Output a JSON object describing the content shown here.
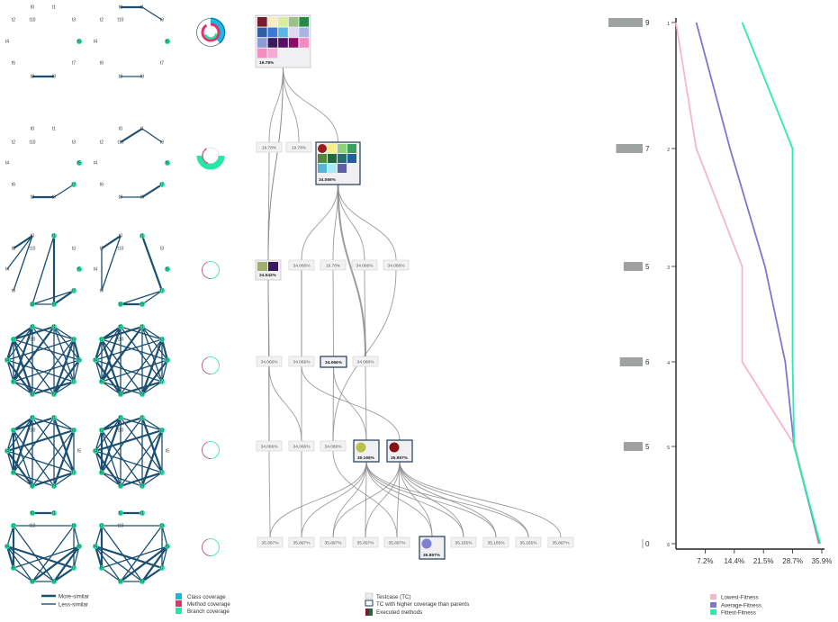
{
  "legend": {
    "graph": [
      "More-similar",
      "Less-similar"
    ],
    "coverage": [
      {
        "label": "Class coverage",
        "color": "#1ab7e5"
      },
      {
        "label": "Method coverage",
        "color": "#e0336b"
      },
      {
        "label": "Branch coverage",
        "color": "#22e8a8"
      }
    ],
    "testcase": [
      "Testcase (TC)",
      "TC with higher coverage than parents",
      "Executed methods"
    ],
    "fitness": [
      {
        "label": "Lowest-Fitness",
        "color": "#f7b6c8"
      },
      {
        "label": "Average-Fitness",
        "color": "#7b78cf"
      },
      {
        "label": "Fittest-Fitness",
        "color": "#26f0a6"
      }
    ]
  },
  "node_labels": [
    "t0",
    "t1",
    "t2",
    "t3",
    "t4",
    "t5",
    "t6",
    "t7",
    "t8",
    "t9",
    "t10"
  ],
  "tree": {
    "levels": [
      {
        "nodes": [
          "19.78%"
        ]
      },
      {
        "nodes": [
          "19.78%",
          "19.78%",
          "34.066%"
        ]
      },
      {
        "nodes": [
          "24.542%",
          "34.066%",
          "19.78%",
          "34.066%",
          "34.066%"
        ]
      },
      {
        "nodes": [
          "34.066%",
          "34.066%",
          "34.066%",
          "34.066%"
        ]
      },
      {
        "nodes": [
          "34.066%",
          "34.066%",
          "34.066%",
          "35.165%",
          "35.897%"
        ]
      },
      {
        "nodes": [
          "35.897%",
          "35.897%",
          "35.897%",
          "35.897%",
          "35.897%",
          "35.897%",
          "35.165%",
          "35.165%",
          "35.165%",
          "35.897%"
        ]
      }
    ]
  },
  "chart_data": {
    "type": "line",
    "bars": {
      "generations": [
        1,
        2,
        3,
        4,
        5,
        6
      ],
      "counts": [
        9,
        7,
        5,
        6,
        5,
        0
      ]
    },
    "y_ticks": [
      "1",
      "2",
      "3",
      "4",
      "5",
      "6"
    ],
    "x_ticks": [
      "7.2%",
      "14.4%",
      "21.5%",
      "28.7%",
      "35.9%"
    ],
    "xlim": [
      0,
      35.9
    ],
    "series": [
      {
        "name": "Lowest-Fitness",
        "color": "#f7b6c8",
        "values": [
          0,
          5.0,
          16.3,
          16.3,
          29.4,
          35.1
        ]
      },
      {
        "name": "Average-Fitness",
        "color": "#7b78cf",
        "values": [
          5.0,
          13.3,
          21.9,
          26.9,
          29.1,
          35.3
        ]
      },
      {
        "name": "Fittest-Fitness",
        "color": "#26f0a6",
        "values": [
          16.3,
          28.7,
          28.7,
          28.7,
          29.1,
          35.5
        ]
      }
    ]
  }
}
